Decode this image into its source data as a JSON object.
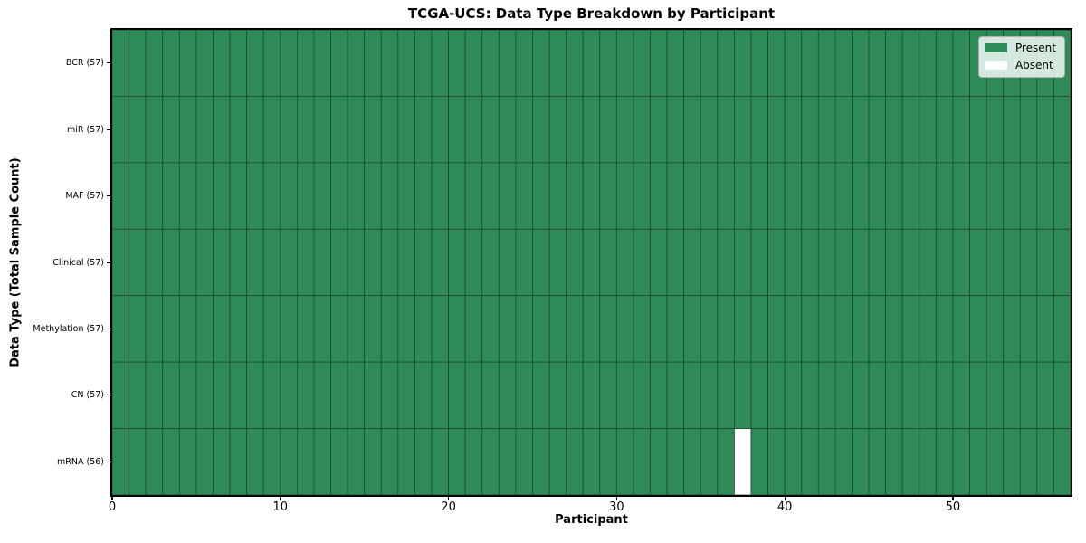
{
  "chart_data": {
    "type": "heatmap",
    "title": "TCGA-UCS: Data Type Breakdown by Participant",
    "xlabel": "Participant",
    "ylabel": "Data Type (Total Sample Count)",
    "x_ticks": [
      0,
      10,
      20,
      30,
      40,
      50
    ],
    "x_range": [
      0,
      57
    ],
    "n_participants": 57,
    "grid": true,
    "rows": [
      {
        "data_type": "BCR",
        "label": "BCR (57)",
        "total_samples": 57,
        "present_count": 57,
        "absent_participants": []
      },
      {
        "data_type": "miR",
        "label": "miR (57)",
        "total_samples": 57,
        "present_count": 57,
        "absent_participants": []
      },
      {
        "data_type": "MAF",
        "label": "MAF (57)",
        "total_samples": 57,
        "present_count": 57,
        "absent_participants": []
      },
      {
        "data_type": "Clinical",
        "label": "Clinical (57)",
        "total_samples": 57,
        "present_count": 57,
        "absent_participants": []
      },
      {
        "data_type": "Methylation",
        "label": "Methylation (57)",
        "total_samples": 57,
        "present_count": 57,
        "absent_participants": []
      },
      {
        "data_type": "CN",
        "label": "CN (57)",
        "total_samples": 57,
        "present_count": 57,
        "absent_participants": []
      },
      {
        "data_type": "mRNA",
        "label": "mRNA (56)",
        "total_samples": 56,
        "present_count": 56,
        "absent_participants": [
          37
        ]
      }
    ],
    "legend_items": [
      {
        "label": "Present",
        "color": "#2e8b57"
      },
      {
        "label": "Absent",
        "color": "#ffffff"
      }
    ],
    "legend_position": "upper right",
    "colors": {
      "present": "#2e8b57",
      "absent": "#ffffff",
      "cell_edge": "#1d4a31",
      "axis_spine": "#000000",
      "legend_border": "#b0b0b0",
      "background": "#ffffff"
    }
  }
}
